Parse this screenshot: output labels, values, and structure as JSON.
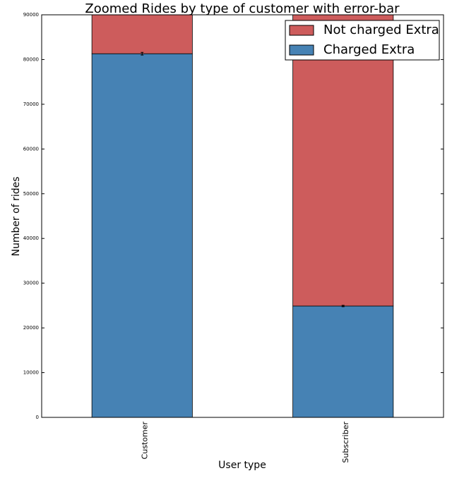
{
  "chart_data": {
    "type": "stacked_bar",
    "title": "Zoomed  Rides by type of customer with error-bar",
    "x_label": "User type",
    "y_label": "Number of rides",
    "categories": [
      "Customer",
      "Subscriber"
    ],
    "series": [
      {
        "name": "Charged Extra",
        "color": "#4682b4",
        "values": [
          81300,
          24900
        ],
        "errors": [
          300,
          150
        ]
      },
      {
        "name": "Not charged Extra",
        "color": "#cd5c5c",
        "values": [
          8700,
          65100
        ]
      }
    ],
    "ylim": [
      0,
      90000
    ],
    "yticks": [
      0,
      10000,
      20000,
      30000,
      40000,
      50000,
      60000,
      70000,
      80000,
      90000
    ],
    "legend": "upper right"
  }
}
